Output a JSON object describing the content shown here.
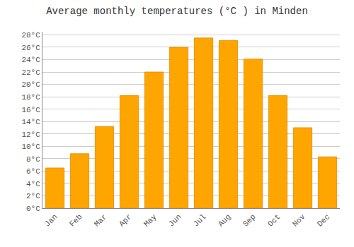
{
  "chart_data": {
    "type": "bar",
    "title": "Average monthly temperatures (°C ) in Minden",
    "categories": [
      "Jan",
      "Feb",
      "Mar",
      "Apr",
      "May",
      "Jun",
      "Jul",
      "Aug",
      "Sep",
      "Oct",
      "Nov",
      "Dec"
    ],
    "values": [
      6.5,
      8.8,
      13.2,
      18.2,
      22.0,
      26.0,
      27.5,
      27.1,
      24.1,
      18.2,
      13.0,
      8.3
    ],
    "color": "#FFA500",
    "ylim": [
      0,
      28.5
    ],
    "yticks": [
      {
        "value": 0,
        "label": "0°C"
      },
      {
        "value": 2,
        "label": "2°C"
      },
      {
        "value": 4,
        "label": "4°C"
      },
      {
        "value": 6,
        "label": "6°C"
      },
      {
        "value": 8,
        "label": "8°C"
      },
      {
        "value": 10,
        "label": "10°C"
      },
      {
        "value": 12,
        "label": "12°C"
      },
      {
        "value": 14,
        "label": "14°C"
      },
      {
        "value": 16,
        "label": "16°C"
      },
      {
        "value": 18,
        "label": "18°C"
      },
      {
        "value": 20,
        "label": "20°C"
      },
      {
        "value": 22,
        "label": "22°C"
      },
      {
        "value": 24,
        "label": "24°C"
      },
      {
        "value": 26,
        "label": "26°C"
      },
      {
        "value": 28,
        "label": "28°C"
      }
    ],
    "grid": true
  }
}
